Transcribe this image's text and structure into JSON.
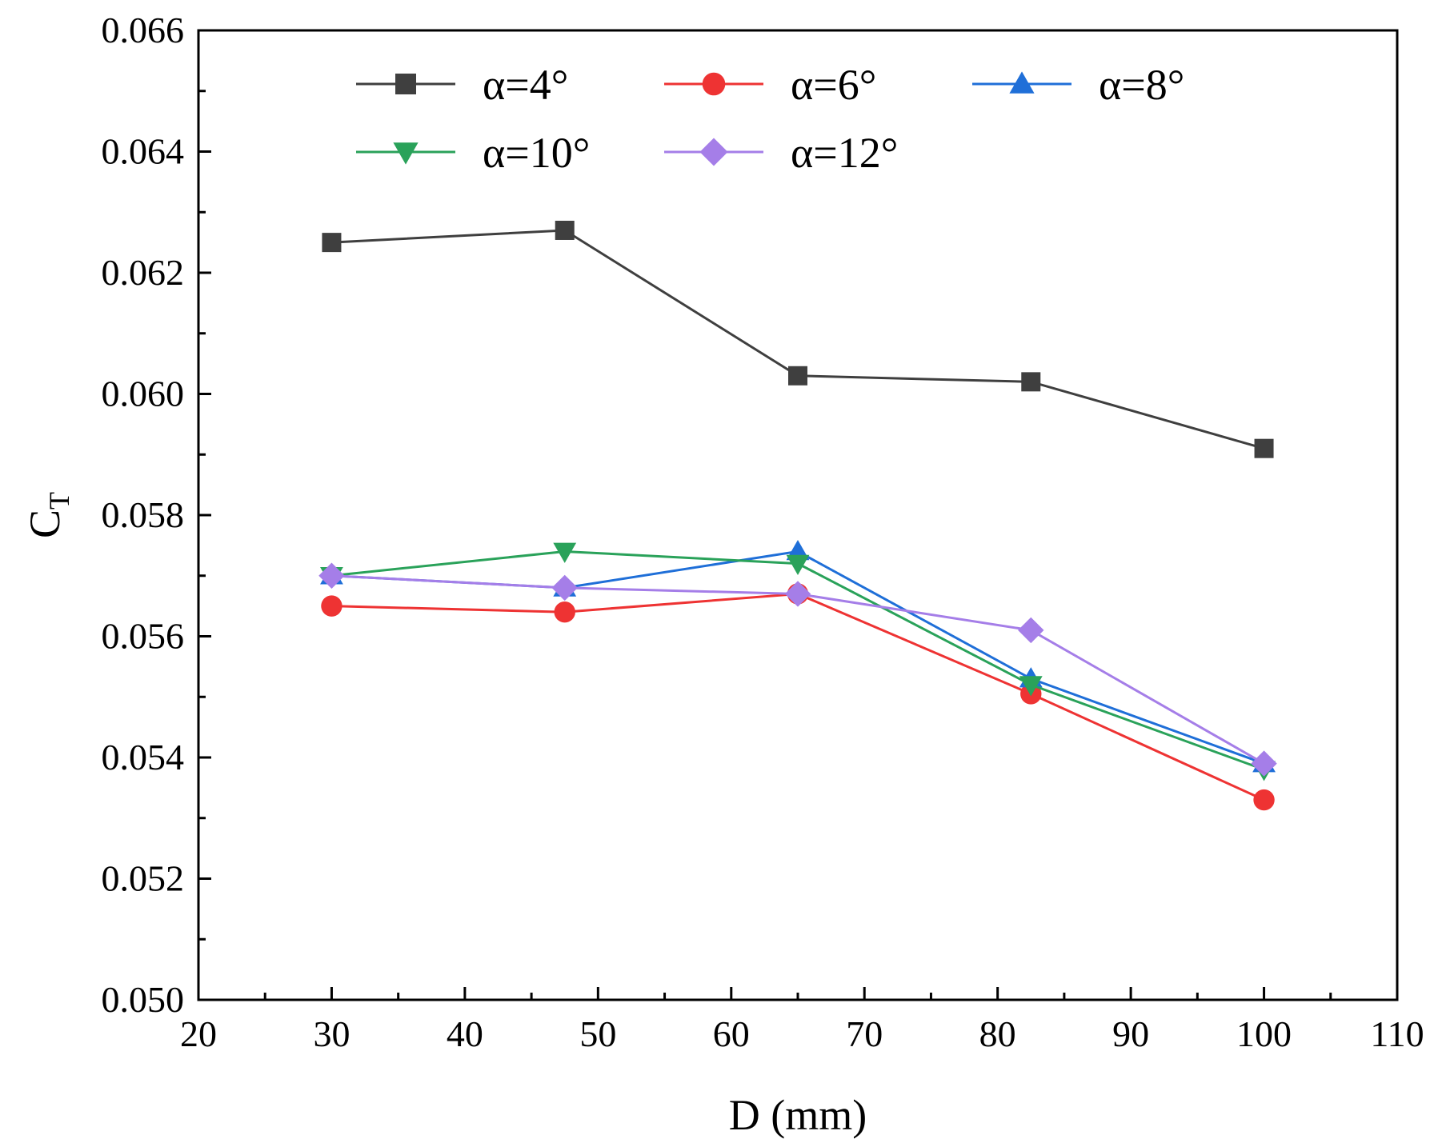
{
  "chart_data": {
    "type": "line",
    "xlabel": "D (mm)",
    "ylabel_main": "C",
    "ylabel_sub": "T",
    "xlim": [
      20,
      110
    ],
    "ylim": [
      0.05,
      0.066
    ],
    "xticks": [
      20,
      30,
      40,
      50,
      60,
      70,
      80,
      90,
      100,
      110
    ],
    "xtick_labels": [
      "20",
      "30",
      "40",
      "50",
      "60",
      "70",
      "80",
      "90",
      "100",
      "110"
    ],
    "yticks": [
      0.05,
      0.052,
      0.054,
      0.056,
      0.058,
      0.06,
      0.062,
      0.064,
      0.066
    ],
    "ytick_labels": [
      "0.050",
      "0.052",
      "0.054",
      "0.056",
      "0.058",
      "0.060",
      "0.062",
      "0.064",
      "0.066"
    ],
    "x": [
      30,
      47.5,
      65,
      82.5,
      100
    ],
    "legend_position": "top",
    "series": [
      {
        "name": "α=4°",
        "marker": "square",
        "color": "#3f3f3f",
        "line_color": "#3f3f3f",
        "values": [
          0.0625,
          0.0627,
          0.0603,
          0.0602,
          0.0591
        ]
      },
      {
        "name": "α=6°",
        "marker": "circle",
        "color": "#ee3333",
        "line_color": "#ee3333",
        "values": [
          0.0565,
          0.0564,
          0.0567,
          0.05505,
          0.0533
        ]
      },
      {
        "name": "α=8°",
        "marker": "triangle-up",
        "color": "#1f6fd8",
        "line_color": "#1f6fd8",
        "values": [
          0.057,
          0.0568,
          0.0574,
          0.0553,
          0.0539
        ]
      },
      {
        "name": "α=10°",
        "marker": "triangle-down",
        "color": "#2aa25a",
        "line_color": "#2aa25a",
        "values": [
          0.057,
          0.0574,
          0.0572,
          0.0552,
          0.0538
        ]
      },
      {
        "name": "α=12°",
        "marker": "diamond",
        "color": "#a57ee8",
        "line_color": "#a57ee8",
        "values": [
          0.057,
          0.0568,
          0.0567,
          0.0561,
          0.0539
        ]
      }
    ]
  }
}
